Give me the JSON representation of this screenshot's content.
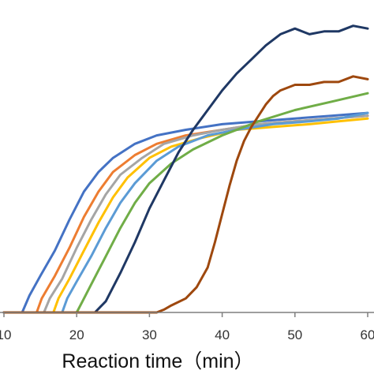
{
  "chart_data": {
    "type": "line",
    "title": "",
    "xlabel": "Reaction time（min）",
    "ylabel": "",
    "xlim": [
      10,
      60
    ],
    "ylim": [
      0,
      1.05
    ],
    "x_ticks": [
      "10",
      "20",
      "30",
      "40",
      "50",
      "60"
    ],
    "grid": false,
    "legend": "none",
    "series": [
      {
        "color": "#4472c4",
        "points": [
          [
            10,
            0
          ],
          [
            12.5,
            0
          ],
          [
            13.5,
            0.06
          ],
          [
            15,
            0.13
          ],
          [
            17,
            0.22
          ],
          [
            19,
            0.33
          ],
          [
            21,
            0.43
          ],
          [
            23,
            0.5
          ],
          [
            25,
            0.55
          ],
          [
            28,
            0.6
          ],
          [
            31,
            0.63
          ],
          [
            35,
            0.65
          ],
          [
            40,
            0.67
          ],
          [
            45,
            0.68
          ],
          [
            50,
            0.69
          ],
          [
            55,
            0.7
          ],
          [
            60,
            0.71
          ]
        ]
      },
      {
        "color": "#ed7d31",
        "points": [
          [
            10,
            0
          ],
          [
            14.5,
            0
          ],
          [
            15.2,
            0.05
          ],
          [
            17,
            0.13
          ],
          [
            19,
            0.23
          ],
          [
            21,
            0.34
          ],
          [
            23,
            0.43
          ],
          [
            25,
            0.5
          ],
          [
            28,
            0.56
          ],
          [
            31,
            0.6
          ],
          [
            35,
            0.63
          ],
          [
            40,
            0.65
          ],
          [
            45,
            0.67
          ],
          [
            50,
            0.68
          ],
          [
            55,
            0.69
          ],
          [
            60,
            0.7
          ]
        ]
      },
      {
        "color": "#a5a5a5",
        "points": [
          [
            10,
            0
          ],
          [
            15.5,
            0
          ],
          [
            16.3,
            0.05
          ],
          [
            18,
            0.12
          ],
          [
            20,
            0.23
          ],
          [
            22,
            0.33
          ],
          [
            24,
            0.42
          ],
          [
            26,
            0.49
          ],
          [
            29,
            0.55
          ],
          [
            32,
            0.6
          ],
          [
            36,
            0.63
          ],
          [
            40,
            0.65
          ],
          [
            45,
            0.67
          ],
          [
            50,
            0.68
          ],
          [
            55,
            0.69
          ],
          [
            60,
            0.7
          ]
        ]
      },
      {
        "color": "#ffc000",
        "points": [
          [
            10,
            0
          ],
          [
            16.8,
            0
          ],
          [
            17.5,
            0.05
          ],
          [
            19,
            0.12
          ],
          [
            21,
            0.22
          ],
          [
            23,
            0.32
          ],
          [
            25,
            0.41
          ],
          [
            27,
            0.48
          ],
          [
            30,
            0.55
          ],
          [
            33,
            0.59
          ],
          [
            37,
            0.62
          ],
          [
            42,
            0.65
          ],
          [
            47,
            0.66
          ],
          [
            52,
            0.67
          ],
          [
            56,
            0.68
          ],
          [
            60,
            0.69
          ]
        ]
      },
      {
        "color": "#5b9bd5",
        "points": [
          [
            10,
            0
          ],
          [
            18,
            0
          ],
          [
            18.7,
            0.05
          ],
          [
            20,
            0.11
          ],
          [
            22,
            0.2
          ],
          [
            24,
            0.3
          ],
          [
            26,
            0.39
          ],
          [
            28,
            0.46
          ],
          [
            31,
            0.54
          ],
          [
            34,
            0.59
          ],
          [
            38,
            0.63
          ],
          [
            42,
            0.65
          ],
          [
            47,
            0.67
          ],
          [
            52,
            0.68
          ],
          [
            56,
            0.69
          ],
          [
            60,
            0.71
          ]
        ]
      },
      {
        "color": "#70ad47",
        "points": [
          [
            10,
            0
          ],
          [
            20,
            0
          ],
          [
            20.8,
            0.04
          ],
          [
            22,
            0.1
          ],
          [
            24,
            0.2
          ],
          [
            26,
            0.3
          ],
          [
            28,
            0.39
          ],
          [
            30,
            0.46
          ],
          [
            33,
            0.53
          ],
          [
            36,
            0.58
          ],
          [
            40,
            0.63
          ],
          [
            45,
            0.68
          ],
          [
            50,
            0.72
          ],
          [
            55,
            0.75
          ],
          [
            60,
            0.78
          ]
        ]
      },
      {
        "color": "#1f3864",
        "points": [
          [
            10,
            0
          ],
          [
            22.5,
            0
          ],
          [
            24,
            0.04
          ],
          [
            26,
            0.14
          ],
          [
            28,
            0.25
          ],
          [
            30,
            0.37
          ],
          [
            32,
            0.47
          ],
          [
            34,
            0.57
          ],
          [
            36,
            0.65
          ],
          [
            38,
            0.72
          ],
          [
            40,
            0.79
          ],
          [
            42,
            0.85
          ],
          [
            44,
            0.9
          ],
          [
            46,
            0.95
          ],
          [
            48,
            0.99
          ],
          [
            50,
            1.01
          ],
          [
            52,
            0.99
          ],
          [
            54,
            1.0
          ],
          [
            56,
            1.0
          ],
          [
            58,
            1.02
          ],
          [
            60,
            1.01
          ]
        ]
      },
      {
        "color": "#9e480e",
        "points": [
          [
            10,
            0
          ],
          [
            31,
            0
          ],
          [
            32,
            0.01
          ],
          [
            33,
            0.025
          ],
          [
            35,
            0.05
          ],
          [
            36.5,
            0.09
          ],
          [
            38,
            0.16
          ],
          [
            39,
            0.25
          ],
          [
            40,
            0.35
          ],
          [
            41,
            0.45
          ],
          [
            42,
            0.54
          ],
          [
            43,
            0.61
          ],
          [
            44,
            0.66
          ],
          [
            45,
            0.7
          ],
          [
            46,
            0.74
          ],
          [
            47,
            0.77
          ],
          [
            48,
            0.79
          ],
          [
            50,
            0.81
          ],
          [
            52,
            0.81
          ],
          [
            54,
            0.82
          ],
          [
            56,
            0.82
          ],
          [
            58,
            0.84
          ],
          [
            60,
            0.83
          ]
        ]
      }
    ]
  }
}
